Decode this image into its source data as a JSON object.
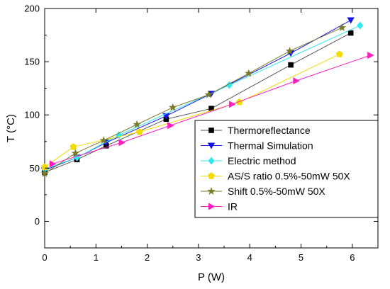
{
  "chart_data": {
    "type": "line",
    "title": "",
    "xlabel": "P (W)",
    "ylabel": "T (°C)",
    "xlim": [
      0,
      6.5
    ],
    "ylim": [
      -25,
      200
    ],
    "xticks": [
      0,
      1,
      2,
      3,
      4,
      5,
      6
    ],
    "yticks": [
      0,
      50,
      100,
      150,
      200
    ],
    "xtick_labels": [
      "0",
      "1",
      "2",
      "3",
      "4",
      "5",
      "6"
    ],
    "ytick_labels": [
      "0",
      "50",
      "100",
      "150",
      "200"
    ],
    "grid": false,
    "legend_position": "right",
    "series": [
      {
        "name": "Thermoreflectance",
        "marker": "square",
        "color": "#000000",
        "line_color": "#555555",
        "x": [
          0.0,
          0.63,
          1.2,
          2.37,
          3.25,
          4.8,
          5.97
        ],
        "y": [
          46,
          58,
          71,
          96,
          106,
          147,
          177
        ]
      },
      {
        "name": "Thermal Simulation",
        "marker": "triangle-down",
        "color": "#1414e6",
        "line_color": "#1414e6",
        "x": [
          0.0,
          0.63,
          1.2,
          2.37,
          3.25,
          4.8,
          5.97
        ],
        "y": [
          48,
          60,
          74,
          99,
          120,
          158,
          189
        ]
      },
      {
        "name": "Electric method",
        "marker": "diamond",
        "color": "#2ee8f0",
        "line_color": "#2ee8f0",
        "x": [
          0.0,
          0.63,
          1.45,
          3.6,
          6.15
        ],
        "y": [
          49,
          60,
          81,
          128,
          184
        ]
      },
      {
        "name": "AS/S ratio 0.5%-50mW 50X",
        "marker": "pentagon",
        "color": "#f2dc00",
        "line_color": "#f2dc00",
        "x": [
          0.0,
          0.56,
          1.85,
          3.8,
          5.75
        ],
        "y": [
          51,
          70,
          84,
          112,
          157
        ]
      },
      {
        "name": "Shift 0.5%-50mW 50X",
        "marker": "star",
        "color": "#7a7a28",
        "line_color": "#7a7a28",
        "x": [
          0.0,
          0.6,
          1.15,
          1.8,
          2.5,
          3.2,
          3.98,
          4.78,
          5.8
        ],
        "y": [
          45,
          64,
          76,
          91,
          107,
          119,
          139,
          160,
          182
        ]
      },
      {
        "name": "IR",
        "marker": "triangle-right",
        "color": "#ff1fbe",
        "line_color": "#ff1fbe",
        "x": [
          0.15,
          1.5,
          2.45,
          3.65,
          4.9,
          6.35
        ],
        "y": [
          54,
          74,
          90,
          110,
          132,
          156
        ]
      }
    ]
  }
}
